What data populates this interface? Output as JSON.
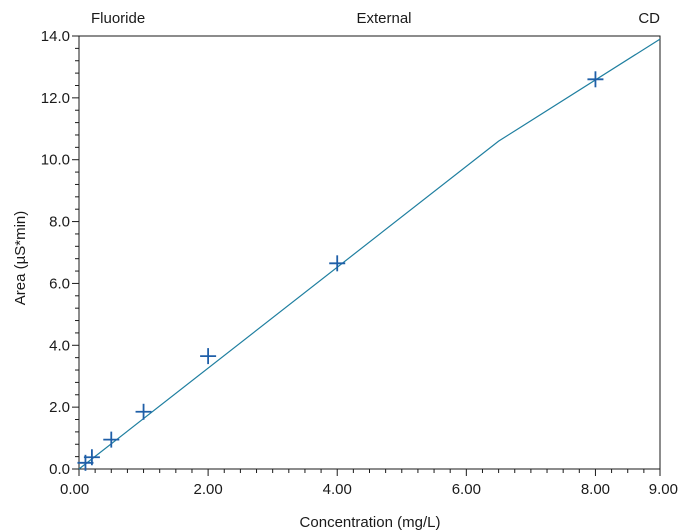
{
  "header": {
    "left": "Fluoride",
    "center": "External",
    "right": "CD"
  },
  "chart_data": {
    "type": "scatter",
    "xlabel": "Concentration (mg/L)",
    "ylabel": "Area (µS*min)",
    "xlim": [
      0,
      9
    ],
    "ylim": [
      0,
      14
    ],
    "x_ticks": [
      "0.00",
      "2.00",
      "4.00",
      "6.00",
      "8.00",
      "9.00"
    ],
    "y_ticks": [
      "0.0",
      "2.0",
      "4.0",
      "6.0",
      "8.0",
      "10.0",
      "12.0",
      "14.0"
    ],
    "grid": false,
    "series": [
      {
        "type": "scatter",
        "marker": "+",
        "x": [
          0.1,
          0.2,
          0.5,
          1.0,
          2.0,
          4.0,
          8.0
        ],
        "y": [
          0.2,
          0.38,
          0.95,
          1.85,
          3.65,
          6.65,
          12.6
        ]
      },
      {
        "type": "line",
        "x": [
          0.0,
          6.5,
          9.0
        ],
        "y": [
          0.0,
          10.6,
          13.9
        ]
      }
    ],
    "colors": {
      "marker": "#1f5fa8",
      "line": "#1f7fa0",
      "axis": "#1a1a1a"
    }
  }
}
